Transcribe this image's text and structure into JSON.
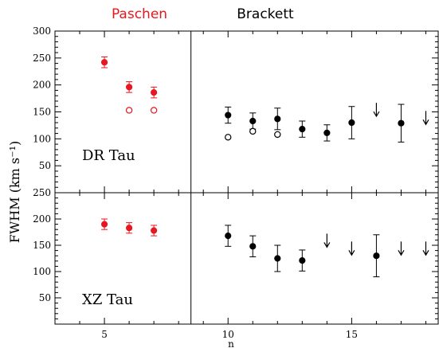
{
  "header": {
    "left_label": "Paschen",
    "right_label": "Brackett"
  },
  "colors": {
    "paschen": "#e8161e",
    "brackett": "#000000"
  },
  "chart_data": {
    "type": "scatter",
    "xlabel": "n",
    "ylabel": "FWHM (km s⁻¹)",
    "xlim": [
      3,
      18.5
    ],
    "x_ticks": [
      5,
      10,
      15
    ],
    "divider_x": 8.5,
    "panels": [
      {
        "name": "DR Tau",
        "ylim": [
          0,
          300
        ],
        "y_ticks": [
          50,
          100,
          150,
          200,
          250,
          300
        ],
        "series": [
          {
            "group": "Paschen",
            "marker": "filled",
            "points": [
              {
                "x": 5,
                "y": 242,
                "err": 10
              },
              {
                "x": 6,
                "y": 196,
                "err": 10
              },
              {
                "x": 7,
                "y": 186,
                "err": 10
              }
            ]
          },
          {
            "group": "Paschen",
            "marker": "open",
            "points": [
              {
                "x": 6,
                "y": 153
              },
              {
                "x": 7,
                "y": 153
              }
            ]
          },
          {
            "group": "Brackett",
            "marker": "filled",
            "points": [
              {
                "x": 10,
                "y": 144,
                "err": 15
              },
              {
                "x": 11,
                "y": 133,
                "err": 15
              },
              {
                "x": 12,
                "y": 137,
                "err": 20
              },
              {
                "x": 13,
                "y": 118,
                "err": 15
              },
              {
                "x": 14,
                "y": 111,
                "err": 15
              },
              {
                "x": 15,
                "y": 130,
                "err": 30
              },
              {
                "x": 17,
                "y": 129,
                "err": 35
              }
            ]
          },
          {
            "group": "Brackett",
            "marker": "open",
            "points": [
              {
                "x": 10,
                "y": 103
              },
              {
                "x": 11,
                "y": 114
              },
              {
                "x": 12,
                "y": 108
              }
            ]
          },
          {
            "group": "Brackett",
            "marker": "upper-limit",
            "points": [
              {
                "x": 16,
                "y": 155
              },
              {
                "x": 18,
                "y": 140
              }
            ]
          }
        ]
      },
      {
        "name": "XZ Tau",
        "ylim": [
          0,
          250
        ],
        "y_ticks": [
          50,
          100,
          150,
          200,
          250
        ],
        "series": [
          {
            "group": "Paschen",
            "marker": "filled",
            "points": [
              {
                "x": 5,
                "y": 190,
                "err": 10
              },
              {
                "x": 6,
                "y": 183,
                "err": 10
              },
              {
                "x": 7,
                "y": 178,
                "err": 10
              }
            ]
          },
          {
            "group": "Brackett",
            "marker": "filled",
            "points": [
              {
                "x": 10,
                "y": 168,
                "err": 20
              },
              {
                "x": 11,
                "y": 148,
                "err": 20
              },
              {
                "x": 12,
                "y": 125,
                "err": 25
              },
              {
                "x": 13,
                "y": 121,
                "err": 20
              },
              {
                "x": 16,
                "y": 130,
                "err": 40
              }
            ]
          },
          {
            "group": "Brackett",
            "marker": "upper-limit",
            "points": [
              {
                "x": 14,
                "y": 160
              },
              {
                "x": 15,
                "y": 145
              },
              {
                "x": 17,
                "y": 145
              },
              {
                "x": 18,
                "y": 145
              }
            ]
          }
        ]
      }
    ]
  }
}
